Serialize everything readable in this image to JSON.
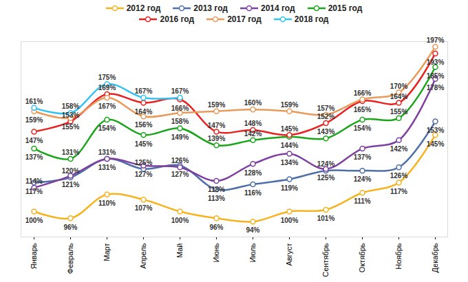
{
  "chart_data": {
    "type": "line",
    "categories": [
      "Январь",
      "Февраль",
      "Март",
      "Апрель",
      "Май",
      "Июнь",
      "Июль",
      "Август",
      "Сентябрь",
      "Октябрь",
      "Ноябрь",
      "Декабрь"
    ],
    "series": [
      {
        "name": "2012 год",
        "color": "#f5b31e",
        "values": [
          100,
          96,
          110,
          107,
          100,
          96,
          94,
          100,
          101,
          111,
          117,
          145
        ],
        "value_labels": [
          "100%",
          "96%",
          "110%",
          "107%",
          "100%",
          "96%",
          "94%",
          "100%",
          "101%",
          "111%",
          "117%",
          "145%"
        ]
      },
      {
        "name": "2013 год",
        "color": "#4f6fa8",
        "values": [
          117,
          120,
          131,
          125,
          127,
          113,
          116,
          119,
          124,
          124,
          126,
          153
        ],
        "value_labels": [
          "117%",
          "120%",
          "131%",
          "125%",
          "127%",
          "113%",
          "116%",
          "119%",
          "124%",
          "124%",
          "126%",
          "153%"
        ]
      },
      {
        "name": "2014 год",
        "color": "#7f3fa0",
        "values": [
          114,
          121,
          131,
          127,
          126,
          118,
          128,
          134,
          125,
          137,
          142,
          178
        ],
        "value_labels": [
          "114%",
          "121%",
          "131%",
          "127%",
          "126%",
          "118%",
          "128%",
          "134%",
          "125%",
          "137%",
          "142%",
          "178%"
        ]
      },
      {
        "name": "2015 год",
        "color": "#1aa51a",
        "values": [
          137,
          131,
          154,
          145,
          149,
          139,
          142,
          144,
          143,
          154,
          155,
          185
        ],
        "value_labels": [
          "137%",
          "131%",
          "154%",
          "145%",
          "149%",
          "139%",
          "142%",
          "144%",
          "143%",
          "154%",
          "155%",
          "185%"
        ]
      },
      {
        "name": "2016 год",
        "color": "#e8201e",
        "values": [
          147,
          153,
          169,
          164,
          166,
          147,
          148,
          145,
          152,
          165,
          164,
          193
        ],
        "value_labels": [
          "147%",
          "153%",
          "169%",
          "164%",
          "166%",
          "147%",
          "148%",
          "145%",
          "152%",
          "165%",
          "164%",
          "193%"
        ]
      },
      {
        "name": "2017 год",
        "color": "#e89a5a",
        "values": [
          159,
          155,
          167,
          156,
          158,
          159,
          160,
          159,
          157,
          166,
          170,
          197
        ],
        "value_labels": [
          "159%",
          "155%",
          "167%",
          "156%",
          "158%",
          "159%",
          "160%",
          "159%",
          "157%",
          "166%",
          "170%",
          "197%"
        ]
      },
      {
        "name": "2018 год",
        "color": "#33c3f0",
        "values": [
          161,
          158,
          175,
          167,
          167,
          null,
          null,
          null,
          null,
          null,
          null,
          null
        ],
        "value_labels": [
          "161%",
          "158%",
          "175%",
          "167%",
          "167%",
          null,
          null,
          null,
          null,
          null,
          null,
          null
        ]
      }
    ],
    "ylim": [
      85,
      200
    ],
    "grid": false,
    "data_labels": true,
    "tick_labels": "x",
    "legend": "top",
    "marker": "circle"
  }
}
